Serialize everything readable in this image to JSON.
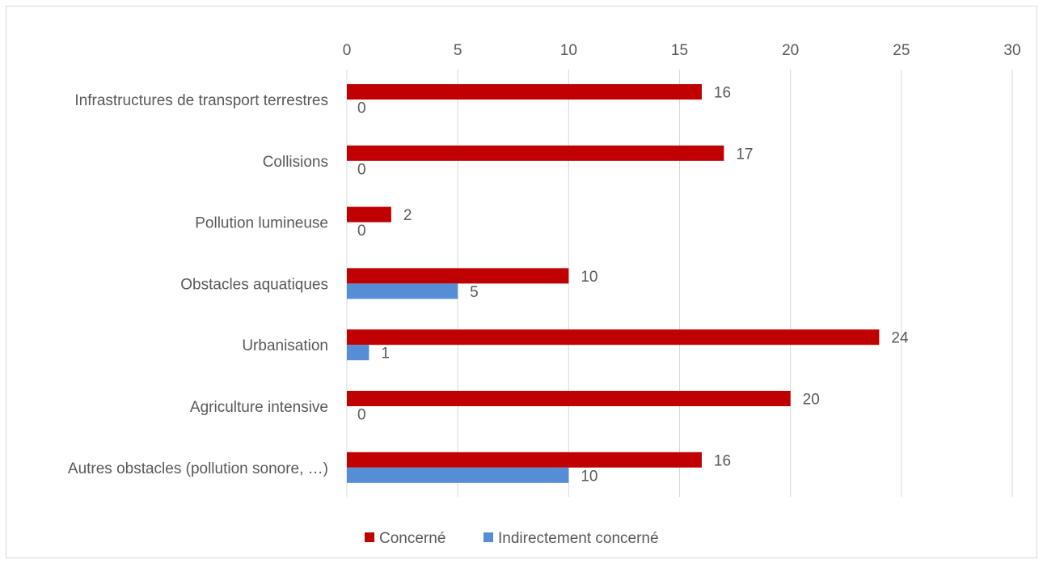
{
  "chart_data": {
    "type": "bar",
    "orientation": "horizontal",
    "categories": [
      "Infrastructures de transport terrestres",
      "Collisions",
      "Pollution lumineuse",
      "Obstacles aquatiques",
      "Urbanisation",
      "Agriculture intensive",
      "Autres obstacles (pollution sonore, …)"
    ],
    "series": [
      {
        "name": "Concerné",
        "color": "#C00000",
        "values": [
          16,
          17,
          2,
          10,
          24,
          20,
          16
        ]
      },
      {
        "name": "Indirectement concerné",
        "color": "#558ED5",
        "values": [
          0,
          0,
          0,
          5,
          1,
          0,
          10
        ]
      }
    ],
    "xlim": [
      0,
      30
    ],
    "xticks": [
      "0",
      "5",
      "10",
      "15",
      "20",
      "25",
      "30"
    ],
    "x_axis_position": "top",
    "grid": true,
    "data_labels": true,
    "legend_position": "bottom"
  }
}
